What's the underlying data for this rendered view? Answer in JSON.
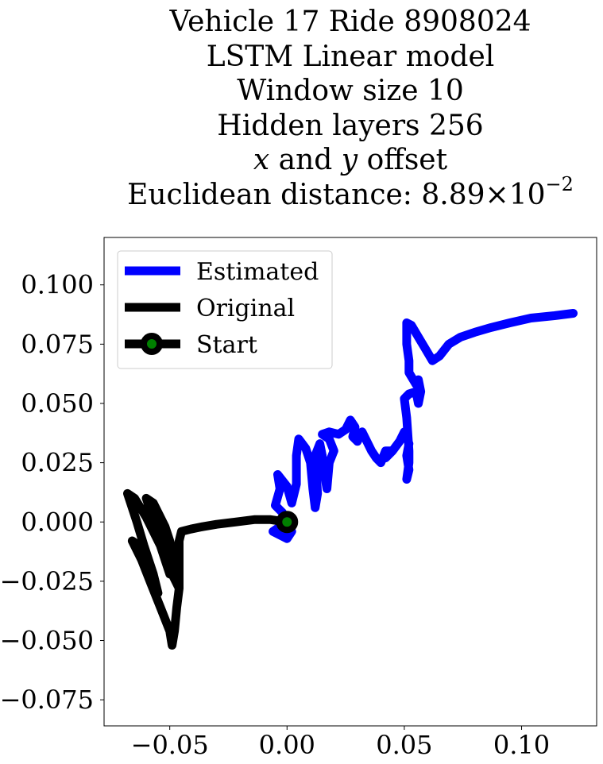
{
  "title": {
    "line1": "Vehicle 17 Ride 8908024",
    "line2": "LSTM Linear model",
    "line3": "Window size 10",
    "line4": "Hidden layers 256",
    "line5": {
      "x_var": "x",
      "mid": " and ",
      "y_var": "y",
      "end": " offset"
    },
    "line6": {
      "prefix": "Euclidean distance: 8.89",
      "times": "×",
      "base": "10",
      "exponent": "−2"
    }
  },
  "colors": {
    "estimated": "#0000ff",
    "original": "#000000",
    "start_marker": "#008000",
    "start_marker_edge": "#000000"
  },
  "chart_data": {
    "type": "line",
    "title": "Vehicle 17 Ride 8908024 LSTM Linear model Window size 10 Hidden layers 256 x and y offset Euclidean distance: 8.89×10^−2",
    "xlabel": "",
    "ylabel": "",
    "xlim": [
      -0.078,
      0.132
    ],
    "ylim": [
      -0.086,
      0.12
    ],
    "grid": false,
    "legend_position": "top-left",
    "xticks": [
      -0.05,
      0.0,
      0.05,
      0.1
    ],
    "xtick_labels": [
      "−0.05",
      "0.00",
      "0.05",
      "0.10"
    ],
    "yticks": [
      -0.075,
      -0.05,
      -0.025,
      0.0,
      0.025,
      0.05,
      0.075,
      0.1
    ],
    "ytick_labels": [
      "−0.075",
      "−0.050",
      "−0.025",
      "0.000",
      "0.025",
      "0.050",
      "0.075",
      "0.100"
    ],
    "legend": [
      "Estimated",
      "Original",
      "Start"
    ],
    "series": [
      {
        "name": "Estimated",
        "points": [
          [
            0.0,
            0.0
          ],
          [
            -0.003,
            -0.002
          ],
          [
            -0.006,
            -0.004
          ],
          [
            -0.004,
            -0.005
          ],
          [
            0.0,
            -0.007
          ],
          [
            0.002,
            -0.004
          ],
          [
            -0.002,
            0.004
          ],
          [
            -0.005,
            0.007
          ],
          [
            -0.003,
            0.014
          ],
          [
            -0.004,
            0.02
          ],
          [
            0.0,
            0.015
          ],
          [
            0.002,
            0.008
          ],
          [
            0.004,
            0.016
          ],
          [
            0.004,
            0.028
          ],
          [
            0.005,
            0.035
          ],
          [
            0.008,
            0.031
          ],
          [
            0.01,
            0.025
          ],
          [
            0.011,
            0.014
          ],
          [
            0.012,
            0.006
          ],
          [
            0.013,
            0.012
          ],
          [
            0.012,
            0.028
          ],
          [
            0.014,
            0.033
          ],
          [
            0.015,
            0.028
          ],
          [
            0.016,
            0.02
          ],
          [
            0.017,
            0.014
          ],
          [
            0.018,
            0.025
          ],
          [
            0.02,
            0.03
          ],
          [
            0.018,
            0.035
          ],
          [
            0.015,
            0.037
          ],
          [
            0.018,
            0.038
          ],
          [
            0.022,
            0.037
          ],
          [
            0.025,
            0.039
          ],
          [
            0.027,
            0.043
          ],
          [
            0.029,
            0.04
          ],
          [
            0.028,
            0.036
          ],
          [
            0.03,
            0.034
          ],
          [
            0.032,
            0.038
          ],
          [
            0.034,
            0.034
          ],
          [
            0.036,
            0.03
          ],
          [
            0.038,
            0.027
          ],
          [
            0.04,
            0.025
          ],
          [
            0.042,
            0.03
          ],
          [
            0.044,
            0.03
          ],
          [
            0.042,
            0.027
          ],
          [
            0.045,
            0.03
          ],
          [
            0.048,
            0.034
          ],
          [
            0.05,
            0.038
          ],
          [
            0.052,
            0.033
          ],
          [
            0.051,
            0.028
          ],
          [
            0.052,
            0.022
          ],
          [
            0.051,
            0.018
          ],
          [
            0.052,
            0.025
          ],
          [
            0.052,
            0.03
          ],
          [
            0.051,
            0.044
          ],
          [
            0.05,
            0.052
          ],
          [
            0.052,
            0.054
          ],
          [
            0.055,
            0.055
          ],
          [
            0.056,
            0.05
          ],
          [
            0.057,
            0.055
          ],
          [
            0.056,
            0.06
          ],
          [
            0.055,
            0.058
          ],
          [
            0.052,
            0.063
          ],
          [
            0.052,
            0.068
          ],
          [
            0.051,
            0.075
          ],
          [
            0.051,
            0.08
          ],
          [
            0.051,
            0.084
          ],
          [
            0.053,
            0.083
          ],
          [
            0.056,
            0.078
          ],
          [
            0.059,
            0.073
          ],
          [
            0.062,
            0.068
          ],
          [
            0.065,
            0.07
          ],
          [
            0.069,
            0.075
          ],
          [
            0.074,
            0.078
          ],
          [
            0.08,
            0.08
          ],
          [
            0.087,
            0.082
          ],
          [
            0.095,
            0.084
          ],
          [
            0.104,
            0.086
          ],
          [
            0.114,
            0.087
          ],
          [
            0.122,
            0.088
          ]
        ]
      },
      {
        "name": "Original",
        "points": [
          [
            0.0,
            0.0
          ],
          [
            -0.007,
            0.001
          ],
          [
            -0.014,
            0.001
          ],
          [
            -0.022,
            0.0
          ],
          [
            -0.03,
            -0.001
          ],
          [
            -0.036,
            -0.002
          ],
          [
            -0.041,
            -0.003
          ],
          [
            -0.045,
            -0.004
          ],
          [
            -0.046,
            -0.008
          ],
          [
            -0.046,
            -0.015
          ],
          [
            -0.046,
            -0.028
          ],
          [
            -0.047,
            -0.036
          ],
          [
            -0.048,
            -0.046
          ],
          [
            -0.049,
            -0.052
          ],
          [
            -0.05,
            -0.046
          ],
          [
            -0.054,
            -0.036
          ],
          [
            -0.058,
            -0.026
          ],
          [
            -0.062,
            -0.016
          ],
          [
            -0.066,
            -0.008
          ],
          [
            -0.063,
            -0.01
          ],
          [
            -0.058,
            -0.02
          ],
          [
            -0.055,
            -0.03
          ],
          [
            -0.057,
            -0.022
          ],
          [
            -0.061,
            -0.01
          ],
          [
            -0.064,
            0.0
          ],
          [
            -0.068,
            0.012
          ],
          [
            -0.065,
            0.01
          ],
          [
            -0.06,
            0.002
          ],
          [
            -0.054,
            -0.01
          ],
          [
            -0.05,
            -0.022
          ],
          [
            -0.052,
            -0.014
          ],
          [
            -0.056,
            -0.002
          ],
          [
            -0.06,
            0.01
          ],
          [
            -0.057,
            0.008
          ],
          [
            -0.052,
            -0.002
          ],
          [
            -0.048,
            -0.016
          ],
          [
            -0.046,
            -0.028
          ],
          [
            -0.05,
            -0.02
          ],
          [
            -0.054,
            -0.008
          ],
          [
            -0.056,
            0.004
          ],
          [
            -0.052,
            -0.002
          ],
          [
            -0.048,
            -0.014
          ],
          [
            -0.046,
            -0.025
          ]
        ]
      },
      {
        "name": "Start",
        "points": [
          [
            0.0,
            0.0
          ]
        ]
      }
    ]
  }
}
